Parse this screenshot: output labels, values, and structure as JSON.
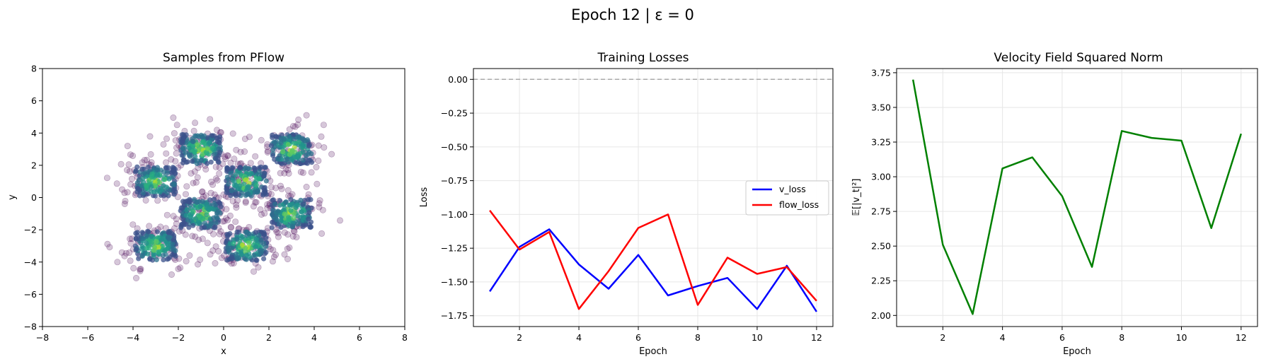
{
  "figure": {
    "suptitle": "Epoch 12 | ε = 0"
  },
  "chart_data": [
    {
      "type": "scatter",
      "title": "Samples from PFlow",
      "xlabel": "x",
      "ylabel": "y",
      "xlim": [
        -8,
        8
      ],
      "ylim": [
        -8,
        8
      ],
      "xticks": [
        -8,
        -6,
        -4,
        -2,
        0,
        2,
        4,
        6,
        8
      ],
      "yticks": [
        -8,
        -6,
        -4,
        -2,
        0,
        2,
        4,
        6,
        8
      ],
      "grid": false,
      "point_color": "#440154",
      "density_colormap": "viridis",
      "clusters": [
        {
          "x_range": [
            -2,
            0
          ],
          "y_range": [
            2,
            4
          ]
        },
        {
          "x_range": [
            2,
            4
          ],
          "y_range": [
            2,
            4
          ]
        },
        {
          "x_range": [
            -4,
            -2
          ],
          "y_range": [
            0,
            2
          ]
        },
        {
          "x_range": [
            0,
            2
          ],
          "y_range": [
            0,
            2
          ]
        },
        {
          "x_range": [
            -2,
            0
          ],
          "y_range": [
            -2,
            0
          ]
        },
        {
          "x_range": [
            2,
            4
          ],
          "y_range": [
            -2,
            0
          ]
        },
        {
          "x_range": [
            -4,
            -2
          ],
          "y_range": [
            -4,
            -2
          ]
        },
        {
          "x_range": [
            0,
            2
          ],
          "y_range": [
            -4,
            -2
          ]
        }
      ]
    },
    {
      "type": "line",
      "title": "Training Losses",
      "xlabel": "Epoch",
      "ylabel": "Loss",
      "x": [
        1,
        2,
        3,
        4,
        5,
        6,
        7,
        8,
        9,
        10,
        11,
        12
      ],
      "xlim": [
        0.45,
        12.55
      ],
      "ylim": [
        -1.83,
        0.08
      ],
      "xticks": [
        2,
        4,
        6,
        8,
        10,
        12
      ],
      "yticks": [
        0.0,
        -0.25,
        -0.5,
        -0.75,
        -1.0,
        -1.25,
        -1.5,
        -1.75
      ],
      "ytick_labels": [
        "0.00",
        "−0.25",
        "−0.50",
        "−0.75",
        "−1.00",
        "−1.25",
        "−1.50",
        "−1.75"
      ],
      "grid": true,
      "legend_position": "center-right",
      "reference_line": {
        "y": 0,
        "color": "#aaaaaa",
        "style": "dashed"
      },
      "series": [
        {
          "name": "v_loss",
          "color": "#0000ff",
          "values": [
            -1.57,
            -1.24,
            -1.11,
            -1.37,
            -1.55,
            -1.3,
            -1.6,
            -1.53,
            -1.47,
            -1.7,
            -1.38,
            -1.72
          ]
        },
        {
          "name": "flow_loss",
          "color": "#ff0000",
          "values": [
            -0.97,
            -1.26,
            -1.13,
            -1.7,
            -1.42,
            -1.1,
            -1.0,
            -1.67,
            -1.32,
            -1.44,
            -1.39,
            -1.64
          ]
        }
      ]
    },
    {
      "type": "line",
      "title": "Velocity Field Squared Norm",
      "xlabel": "Epoch",
      "ylabel": "𝔼[|v_t|²]",
      "x": [
        1,
        2,
        3,
        4,
        5,
        6,
        7,
        8,
        9,
        10,
        11,
        12
      ],
      "xlim": [
        0.45,
        12.55
      ],
      "ylim": [
        1.92,
        3.78
      ],
      "xticks": [
        2,
        4,
        6,
        8,
        10,
        12
      ],
      "yticks": [
        2.0,
        2.25,
        2.5,
        2.75,
        3.0,
        3.25,
        3.5,
        3.75
      ],
      "ytick_labels": [
        "2.00",
        "2.25",
        "2.50",
        "2.75",
        "3.00",
        "3.25",
        "3.50",
        "3.75"
      ],
      "grid": true,
      "series": [
        {
          "color": "#008000",
          "values": [
            3.7,
            2.51,
            2.01,
            3.06,
            3.14,
            2.86,
            2.35,
            3.33,
            3.28,
            3.26,
            2.63,
            3.31
          ]
        }
      ]
    }
  ]
}
